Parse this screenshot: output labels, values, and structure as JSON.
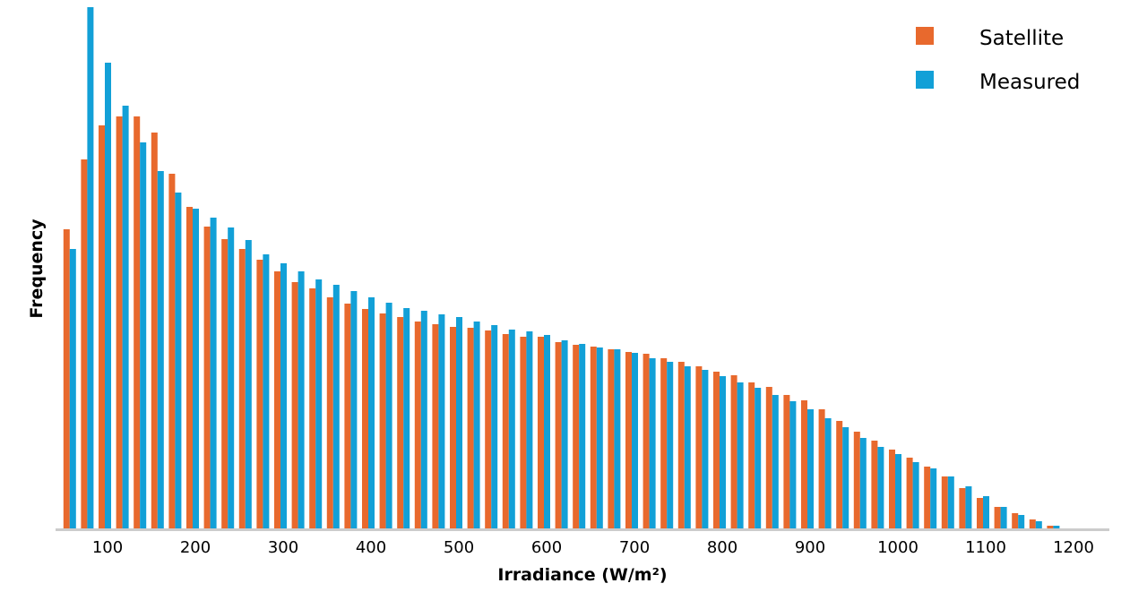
{
  "chart_data": {
    "type": "bar",
    "title": "",
    "xlabel": "Irradiance (W/m²)",
    "ylabel": "Frequency",
    "xlim": [
      40,
      1240
    ],
    "ylim": [
      0,
      583
    ],
    "x_ticks": [
      100,
      200,
      300,
      400,
      500,
      600,
      700,
      800,
      900,
      1000,
      1100,
      1200
    ],
    "grid": false,
    "legend_position": "top-right",
    "x": [
      60,
      80,
      100,
      120,
      140,
      160,
      180,
      200,
      220,
      240,
      260,
      280,
      300,
      320,
      340,
      360,
      380,
      400,
      420,
      440,
      460,
      480,
      500,
      520,
      540,
      560,
      580,
      600,
      620,
      640,
      660,
      680,
      700,
      720,
      740,
      760,
      780,
      800,
      820,
      840,
      860,
      880,
      900,
      920,
      940,
      960,
      980,
      1000,
      1020,
      1040,
      1060,
      1080,
      1100,
      1120,
      1140,
      1160,
      1180,
      1200
    ],
    "series": [
      {
        "name": "Satellite",
        "color": "#e8692d",
        "values": [
          335,
          413,
          451,
          461,
          461,
          443,
          397,
          360,
          338,
          324,
          313,
          301,
          288,
          276,
          269,
          259,
          252,
          246,
          241,
          237,
          232,
          229,
          226,
          225,
          222,
          218,
          215,
          215,
          209,
          206,
          204,
          201,
          198,
          196,
          191,
          187,
          182,
          176,
          172,
          164,
          159,
          150,
          144,
          134,
          121,
          109,
          99,
          89,
          80,
          70,
          59,
          46,
          35,
          25,
          18,
          11,
          4,
          0
        ]
      },
      {
        "name": "Measured",
        "color": "#12a0d7",
        "values": [
          313,
          583,
          521,
          473,
          432,
          400,
          376,
          358,
          348,
          337,
          323,
          307,
          297,
          288,
          279,
          273,
          266,
          259,
          253,
          247,
          244,
          240,
          237,
          232,
          228,
          223,
          221,
          217,
          211,
          207,
          203,
          201,
          197,
          191,
          187,
          182,
          178,
          171,
          164,
          158,
          150,
          143,
          134,
          124,
          114,
          102,
          92,
          84,
          75,
          68,
          59,
          48,
          37,
          25,
          16,
          9,
          4,
          1
        ]
      }
    ]
  }
}
